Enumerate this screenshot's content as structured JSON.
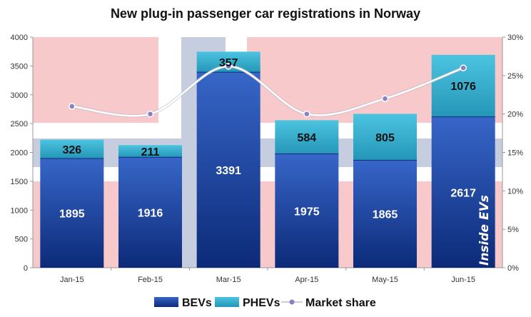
{
  "chart_data": {
    "type": "bar",
    "title": "New plug-in  passenger  car registrations  in Norway",
    "categories": [
      "Jan-15",
      "Feb-15",
      "Mar-15",
      "Apr-15",
      "May-15",
      "Jun-15"
    ],
    "series": [
      {
        "name": "BEVs",
        "values": [
          1895,
          1916,
          3391,
          1975,
          1865,
          2617
        ],
        "color": "#1f47a8"
      },
      {
        "name": "PHEVs",
        "values": [
          326,
          211,
          357,
          584,
          805,
          1076
        ],
        "color": "#2fb0cf"
      }
    ],
    "line_series": {
      "name": "Market share",
      "values": [
        21,
        20,
        26.2,
        20,
        22,
        26
      ],
      "axis": "right",
      "color": "#ffffff",
      "marker_color": "#8a7fc0"
    },
    "ylim": [
      0,
      4000
    ],
    "yticks": [
      "0",
      "500",
      "1000",
      "1500",
      "2000",
      "2500",
      "3000",
      "3500",
      "4000"
    ],
    "y2lim": [
      0,
      30
    ],
    "y2ticks": [
      "0%",
      "5%",
      "10%",
      "15%",
      "20%",
      "25%",
      "30%"
    ],
    "legend_position": "bottom",
    "watermark": "Inside EVs",
    "background": "norwegian-flag"
  }
}
